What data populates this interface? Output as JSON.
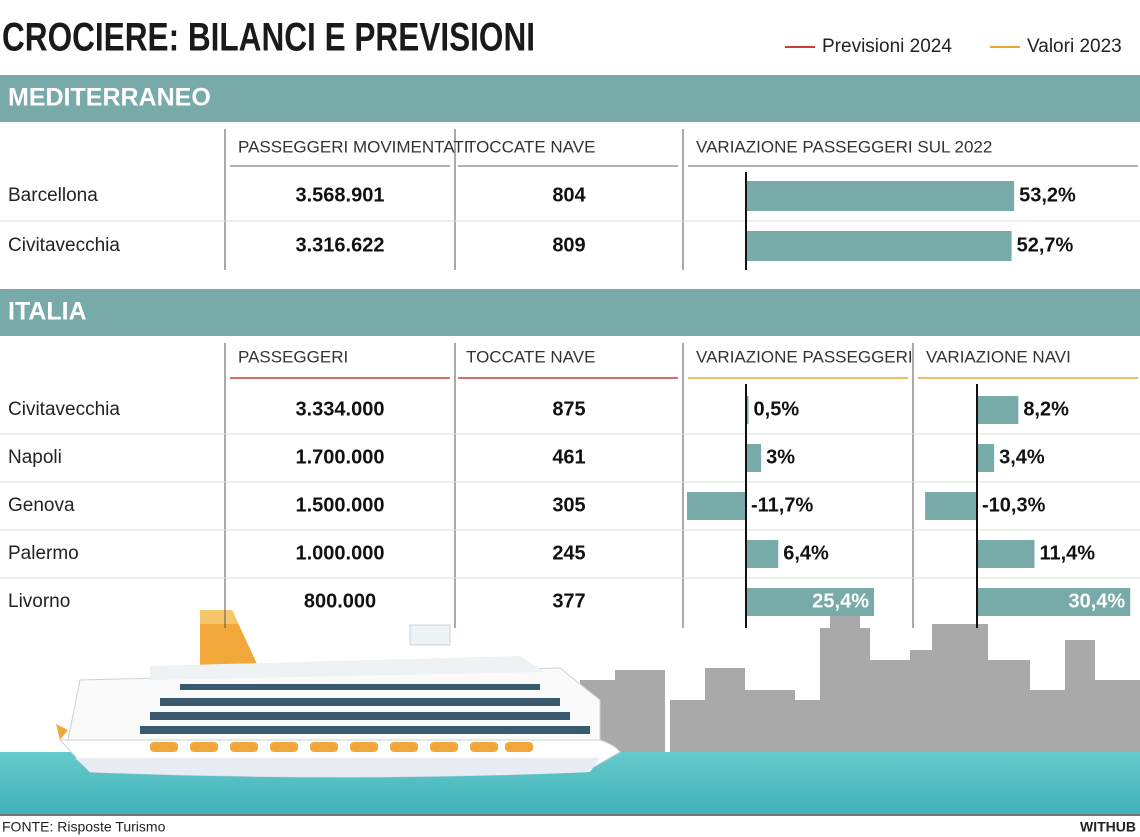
{
  "title": "CROCIERE: BILANCI E PREVISIONI",
  "legend": [
    {
      "name": "Previsioni 2024",
      "color": "#cc3b3b"
    },
    {
      "name": "Valori 2023",
      "color": "#e8a633"
    }
  ],
  "bar_color": "#77aaa9",
  "sections": [
    {
      "title": "MEDITERRANEO",
      "columns": [
        {
          "label": "PASSEGGERI MOVIMENTATI",
          "color": "#9a9a9a"
        },
        {
          "label": "TOCCATE NAVE",
          "color": "#9a9a9a"
        },
        {
          "label": "VARIAZIONE PASSEGGERI SUL 2022",
          "color": "#9a9a9a"
        }
      ],
      "ports": [
        "Barcellona",
        "Civitavecchia"
      ],
      "passengers": [
        "3.568.901",
        "3.316.622"
      ],
      "calls": [
        "804",
        "809"
      ],
      "bar_series": [
        {
          "type": "bar",
          "values": [
            53.2,
            52.7
          ],
          "value_labels": [
            "53,2%",
            "52,7%"
          ]
        }
      ]
    },
    {
      "title": "ITALIA",
      "columns": [
        {
          "label": "PASSEGGERI",
          "color": "#cc3b3b"
        },
        {
          "label": "TOCCATE NAVE",
          "color": "#cc3b3b"
        },
        {
          "label": "VARIAZIONE PASSEGGERI",
          "color": "#e8a633"
        },
        {
          "label": "VARIAZIONE NAVI",
          "color": "#e8a633"
        }
      ],
      "ports": [
        "Civitavecchia",
        "Napoli",
        "Genova",
        "Palermo",
        "Livorno"
      ],
      "passengers": [
        "3.334.000",
        "1.700.000",
        "1.500.000",
        "1.000.000",
        "800.000"
      ],
      "calls": [
        "875",
        "461",
        "305",
        "245",
        "377"
      ],
      "bar_series": [
        {
          "type": "bar",
          "values": [
            0.5,
            3,
            -11.7,
            6.4,
            25.4
          ],
          "value_labels": [
            "0,5%",
            "3%",
            "-11,7%",
            "6,4%",
            "25,4%"
          ]
        },
        {
          "type": "bar",
          "values": [
            8.2,
            3.4,
            -10.3,
            11.4,
            30.4
          ],
          "value_labels": [
            "8,2%",
            "3,4%",
            "-10,3%",
            "11,4%",
            "30,4%"
          ]
        }
      ]
    }
  ],
  "source": "FONTE: Risposte Turismo",
  "brand": "WITHUB"
}
